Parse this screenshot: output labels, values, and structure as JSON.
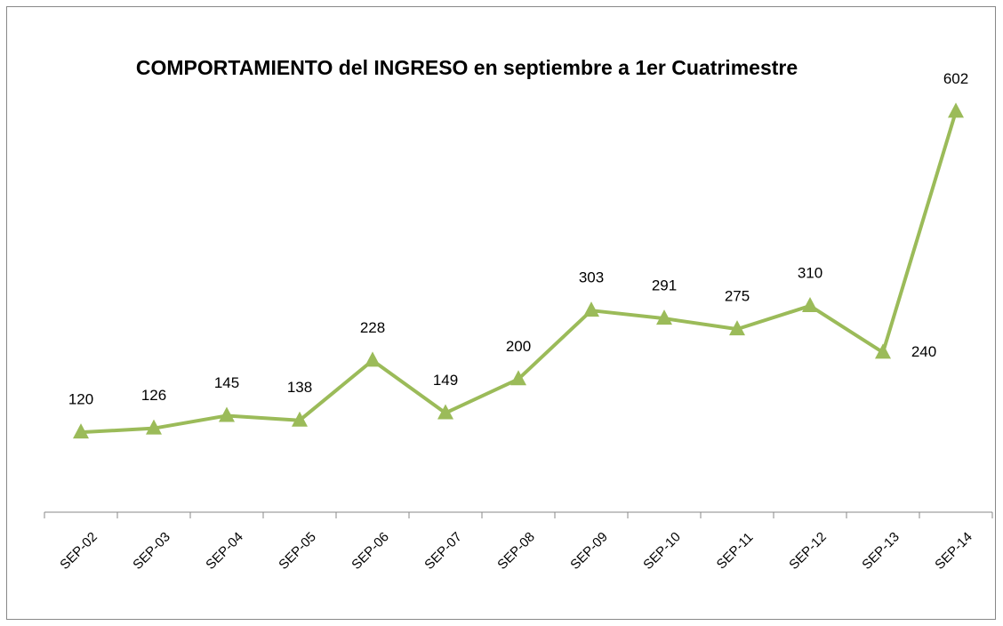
{
  "chart_data": {
    "type": "line",
    "title": "COMPORTAMIENTO del  INGRESO en septiembre a 1er Cuatrimestre",
    "categories": [
      "SEP-02",
      "SEP-03",
      "SEP-04",
      "SEP-05",
      "SEP-06",
      "SEP-07",
      "SEP-08",
      "SEP-09",
      "SEP-10",
      "SEP-11",
      "SEP-12",
      "SEP-13",
      "SEP-14"
    ],
    "values": [
      120,
      126,
      145,
      138,
      228,
      149,
      200,
      303,
      291,
      275,
      310,
      240,
      602
    ],
    "color": "#9bbb59",
    "ylim": [
      0,
      700
    ]
  }
}
